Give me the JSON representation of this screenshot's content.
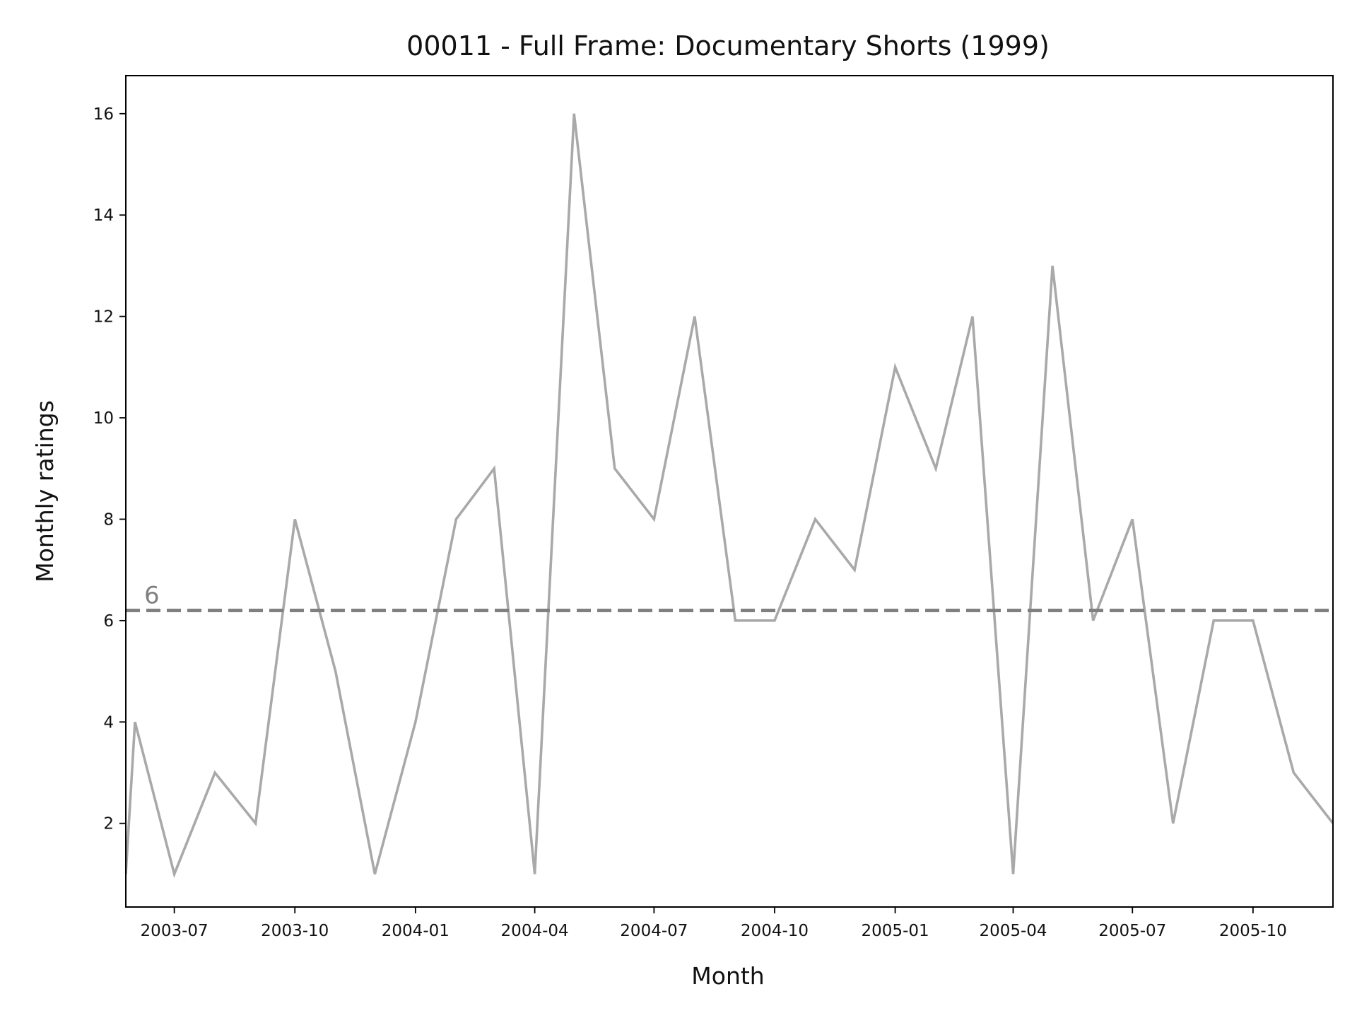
{
  "chart_data": {
    "type": "line",
    "title": "00011 - Full Frame: Documentary Shorts (1999)",
    "xlabel": "Month",
    "ylabel": "Monthly ratings",
    "x_ticks": [
      "2003-07",
      "2003-10",
      "2004-01",
      "2004-04",
      "2004-07",
      "2004-10",
      "2005-01",
      "2005-04",
      "2005-07",
      "2005-10"
    ],
    "y_ticks": [
      2,
      4,
      6,
      8,
      10,
      12,
      14,
      16
    ],
    "ylim": [
      0.35,
      16.75
    ],
    "xlim": [
      "2003-05-25",
      "2005-12-01"
    ],
    "grid": false,
    "series": [
      {
        "color": "#a9a9a9",
        "points": [
          {
            "x": "2003-05-25",
            "y": 1
          },
          {
            "x": "2003-06",
            "y": 4
          },
          {
            "x": "2003-07",
            "y": 1
          },
          {
            "x": "2003-08",
            "y": 3
          },
          {
            "x": "2003-09",
            "y": 2
          },
          {
            "x": "2003-10",
            "y": 8
          },
          {
            "x": "2003-11",
            "y": 5
          },
          {
            "x": "2003-12",
            "y": 1
          },
          {
            "x": "2004-01",
            "y": 4
          },
          {
            "x": "2004-02",
            "y": 8
          },
          {
            "x": "2004-03",
            "y": 9
          },
          {
            "x": "2004-04",
            "y": 1
          },
          {
            "x": "2004-05",
            "y": 16
          },
          {
            "x": "2004-06",
            "y": 9
          },
          {
            "x": "2004-07",
            "y": 8
          },
          {
            "x": "2004-08",
            "y": 12
          },
          {
            "x": "2004-09",
            "y": 6
          },
          {
            "x": "2004-10",
            "y": 6
          },
          {
            "x": "2004-11",
            "y": 8
          },
          {
            "x": "2004-12",
            "y": 7
          },
          {
            "x": "2005-01",
            "y": 11
          },
          {
            "x": "2005-02",
            "y": 9
          },
          {
            "x": "2005-03",
            "y": 12
          },
          {
            "x": "2005-04",
            "y": 1
          },
          {
            "x": "2005-05",
            "y": 13
          },
          {
            "x": "2005-06",
            "y": 6
          },
          {
            "x": "2005-07",
            "y": 8
          },
          {
            "x": "2005-08",
            "y": 2
          },
          {
            "x": "2005-09",
            "y": 6
          },
          {
            "x": "2005-10",
            "y": 6
          },
          {
            "x": "2005-11",
            "y": 3
          },
          {
            "x": "2005-12",
            "y": 2
          }
        ]
      }
    ],
    "reference_line": {
      "y": 6.2,
      "label": "6",
      "color": "#808080",
      "style": "dashed"
    }
  }
}
